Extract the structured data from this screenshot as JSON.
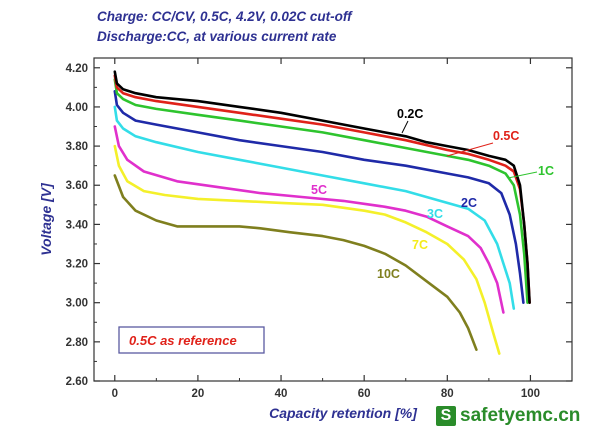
{
  "header": {
    "line1": "Charge: CC/CV, 0.5C, 4.2V, 0.02C cut-off",
    "line2": "Discharge:CC, at various current rate"
  },
  "watermark": {
    "logo": "S",
    "text": "safetyemc.cn"
  },
  "chart_data": {
    "type": "line",
    "xlabel": "Capacity retention [%]",
    "ylabel": "Voltage [V]",
    "xlim": [
      -5,
      110
    ],
    "ylim": [
      2.6,
      4.25
    ],
    "xticks": [
      0,
      20,
      40,
      60,
      80,
      100
    ],
    "xtick_labels": [
      "0",
      "20",
      "40",
      "60",
      "80",
      "100"
    ],
    "yticks": [
      2.6,
      2.8,
      3.0,
      3.2,
      3.4,
      3.6,
      3.8,
      4.0,
      4.2
    ],
    "ytick_labels": [
      "2.60",
      "2.80",
      "3.00",
      "3.20",
      "3.40",
      "3.60",
      "3.80",
      "4.00",
      "4.20"
    ],
    "grid": false,
    "annotation": "0.5C as reference",
    "series": [
      {
        "name": "0.2C",
        "color": "#000000",
        "label_color": "#000000",
        "points": [
          [
            0,
            4.18
          ],
          [
            0.5,
            4.12
          ],
          [
            2,
            4.09
          ],
          [
            5,
            4.07
          ],
          [
            10,
            4.05
          ],
          [
            20,
            4.03
          ],
          [
            30,
            4.0
          ],
          [
            40,
            3.97
          ],
          [
            50,
            3.93
          ],
          [
            60,
            3.89
          ],
          [
            70,
            3.85
          ],
          [
            75,
            3.82
          ],
          [
            80,
            3.8
          ],
          [
            85,
            3.78
          ],
          [
            90,
            3.75
          ],
          [
            94,
            3.73
          ],
          [
            96,
            3.7
          ],
          [
            97.5,
            3.6
          ],
          [
            98.5,
            3.4
          ],
          [
            99.3,
            3.2
          ],
          [
            99.8,
            3.0
          ]
        ]
      },
      {
        "name": "0.5C",
        "color": "#e0221a",
        "label_color": "#e0221a",
        "points": [
          [
            0,
            4.16
          ],
          [
            0.5,
            4.1
          ],
          [
            2,
            4.07
          ],
          [
            5,
            4.05
          ],
          [
            10,
            4.03
          ],
          [
            20,
            4.0
          ],
          [
            30,
            3.97
          ],
          [
            40,
            3.94
          ],
          [
            50,
            3.91
          ],
          [
            60,
            3.87
          ],
          [
            70,
            3.83
          ],
          [
            80,
            3.78
          ],
          [
            85,
            3.76
          ],
          [
            90,
            3.73
          ],
          [
            94,
            3.7
          ],
          [
            96,
            3.67
          ],
          [
            97.5,
            3.58
          ],
          [
            98.5,
            3.4
          ],
          [
            99.3,
            3.2
          ],
          [
            99.8,
            3.0
          ]
        ]
      },
      {
        "name": "1C",
        "color": "#2ec42e",
        "label_color": "#2ec42e",
        "points": [
          [
            0,
            4.14
          ],
          [
            0.5,
            4.07
          ],
          [
            2,
            4.04
          ],
          [
            5,
            4.01
          ],
          [
            10,
            3.99
          ],
          [
            20,
            3.96
          ],
          [
            30,
            3.93
          ],
          [
            40,
            3.9
          ],
          [
            50,
            3.87
          ],
          [
            60,
            3.83
          ],
          [
            70,
            3.79
          ],
          [
            80,
            3.75
          ],
          [
            85,
            3.73
          ],
          [
            90,
            3.7
          ],
          [
            94,
            3.66
          ],
          [
            96,
            3.6
          ],
          [
            97.5,
            3.45
          ],
          [
            98.5,
            3.25
          ],
          [
            99.3,
            3.0
          ]
        ]
      },
      {
        "name": "2C",
        "color": "#1f2aa8",
        "label_color": "#1f2aa8",
        "points": [
          [
            0,
            4.08
          ],
          [
            0.5,
            4.01
          ],
          [
            2,
            3.97
          ],
          [
            5,
            3.93
          ],
          [
            10,
            3.91
          ],
          [
            20,
            3.87
          ],
          [
            30,
            3.83
          ],
          [
            40,
            3.8
          ],
          [
            50,
            3.77
          ],
          [
            60,
            3.73
          ],
          [
            70,
            3.7
          ],
          [
            80,
            3.66
          ],
          [
            85,
            3.64
          ],
          [
            90,
            3.61
          ],
          [
            93,
            3.56
          ],
          [
            95,
            3.45
          ],
          [
            96.5,
            3.3
          ],
          [
            97.5,
            3.15
          ],
          [
            98.3,
            3.0
          ]
        ]
      },
      {
        "name": "3C",
        "color": "#33dde8",
        "label_color": "#33dde8",
        "points": [
          [
            0,
            4.0
          ],
          [
            0.5,
            3.93
          ],
          [
            2,
            3.89
          ],
          [
            5,
            3.85
          ],
          [
            10,
            3.82
          ],
          [
            20,
            3.77
          ],
          [
            30,
            3.73
          ],
          [
            40,
            3.69
          ],
          [
            50,
            3.65
          ],
          [
            60,
            3.61
          ],
          [
            70,
            3.57
          ],
          [
            80,
            3.51
          ],
          [
            85,
            3.48
          ],
          [
            89,
            3.42
          ],
          [
            92,
            3.3
          ],
          [
            93.5,
            3.2
          ],
          [
            95,
            3.1
          ],
          [
            96,
            2.97
          ]
        ]
      },
      {
        "name": "5C",
        "color": "#e030cc",
        "label_color": "#e030cc",
        "points": [
          [
            0,
            3.9
          ],
          [
            1,
            3.8
          ],
          [
            3,
            3.73
          ],
          [
            7,
            3.67
          ],
          [
            15,
            3.62
          ],
          [
            25,
            3.59
          ],
          [
            35,
            3.56
          ],
          [
            45,
            3.54
          ],
          [
            55,
            3.52
          ],
          [
            65,
            3.49
          ],
          [
            70,
            3.47
          ],
          [
            75,
            3.44
          ],
          [
            80,
            3.39
          ],
          [
            85,
            3.34
          ],
          [
            88,
            3.28
          ],
          [
            90,
            3.2
          ],
          [
            92,
            3.1
          ],
          [
            93.5,
            2.95
          ]
        ]
      },
      {
        "name": "7C",
        "color": "#f4f02a",
        "label_color": "#f4ec1a",
        "points": [
          [
            0,
            3.8
          ],
          [
            1,
            3.7
          ],
          [
            3,
            3.62
          ],
          [
            7,
            3.57
          ],
          [
            12,
            3.55
          ],
          [
            20,
            3.53
          ],
          [
            30,
            3.52
          ],
          [
            40,
            3.51
          ],
          [
            50,
            3.5
          ],
          [
            60,
            3.47
          ],
          [
            65,
            3.45
          ],
          [
            70,
            3.41
          ],
          [
            75,
            3.36
          ],
          [
            80,
            3.3
          ],
          [
            84,
            3.22
          ],
          [
            87,
            3.12
          ],
          [
            89,
            3.0
          ],
          [
            91,
            2.85
          ],
          [
            92.5,
            2.74
          ]
        ]
      },
      {
        "name": "10C",
        "color": "#7f7f1e",
        "label_color": "#7f7f1e",
        "points": [
          [
            0,
            3.65
          ],
          [
            2,
            3.54
          ],
          [
            5,
            3.47
          ],
          [
            10,
            3.42
          ],
          [
            15,
            3.39
          ],
          [
            22,
            3.39
          ],
          [
            30,
            3.39
          ],
          [
            35,
            3.38
          ],
          [
            42,
            3.36
          ],
          [
            50,
            3.34
          ],
          [
            55,
            3.32
          ],
          [
            60,
            3.29
          ],
          [
            65,
            3.25
          ],
          [
            70,
            3.19
          ],
          [
            75,
            3.11
          ],
          [
            80,
            3.03
          ],
          [
            83,
            2.95
          ],
          [
            85,
            2.87
          ],
          [
            87,
            2.76
          ]
        ]
      }
    ]
  }
}
